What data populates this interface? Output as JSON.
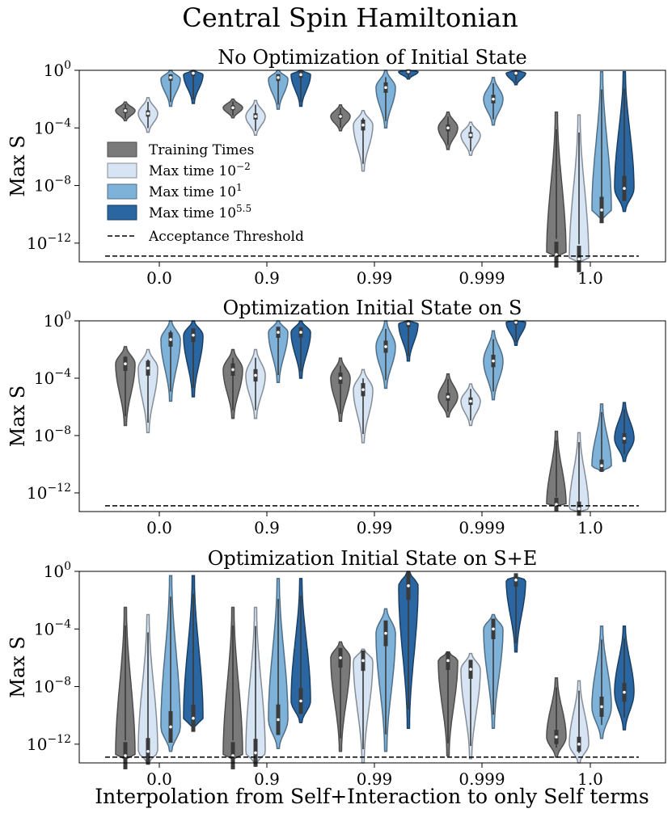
{
  "figure": {
    "suptitle": "Central Spin Hamiltonian",
    "xlabel": "Interpolation from Self+Interaction to only Self terms"
  },
  "colors": {
    "Training Times": "#7a7a7a",
    "Max time 10^-2": "#d6e4f3",
    "Max time 10^1": "#7fb2d9",
    "Max time 10^5.5": "#2a66a1",
    "threshold": "#000000"
  },
  "legend": {
    "entries": [
      {
        "label": "Training Times",
        "base": "Training Times",
        "sup": "",
        "color_key": "Training Times"
      },
      {
        "label": "Max time 10^-2",
        "base": "Max time 10",
        "sup": "−2",
        "color_key": "Max time 10^-2"
      },
      {
        "label": "Max time 10^1",
        "base": "Max time 10",
        "sup": "1",
        "color_key": "Max time 10^1"
      },
      {
        "label": "Max time 10^5.5",
        "base": "Max time 10",
        "sup": "5.5",
        "color_key": "Max time 10^5.5"
      }
    ],
    "threshold_label": "Acceptance Threshold",
    "placement": "left, inside top panel"
  },
  "chart_data": [
    {
      "type": "violin",
      "title": "No Optimization of Initial State",
      "xlabel": "",
      "ylabel": "Max S",
      "yscale": "log10",
      "ylim_log10": [
        -13.3,
        0
      ],
      "yticks_log10": [
        0,
        -4,
        -8,
        -12
      ],
      "ytick_labels": [
        {
          "base": "10",
          "exp": "0"
        },
        {
          "base": "10",
          "exp": "−4"
        },
        {
          "base": "10",
          "exp": "−8"
        },
        {
          "base": "10",
          "exp": "−12"
        }
      ],
      "categories": [
        "0.0",
        "0.9",
        "0.99",
        "0.999",
        "1.0"
      ],
      "acceptance_threshold_log10": -12.9,
      "series_names": [
        "Training Times",
        "Max time 10^-2",
        "Max time 10^1",
        "Max time 10^5.5"
      ],
      "violins": [
        [
          [
            -3.5,
            -2.2,
            -2.8,
            -2.8
          ],
          [
            -4.3,
            -1.9,
            -3.0,
            -3.0
          ],
          [
            -2.5,
            0,
            -0.5,
            -0.6
          ],
          [
            -2.3,
            0,
            -0.2,
            -0.3
          ]
        ],
        [
          [
            -3.3,
            -2.0,
            -2.6,
            -2.6
          ],
          [
            -4.5,
            -2.1,
            -3.2,
            -3.2
          ],
          [
            -2.7,
            0,
            -0.5,
            -0.6
          ],
          [
            -2.5,
            0,
            -0.3,
            -0.3
          ]
        ],
        [
          [
            -4.2,
            -2.4,
            -3.2,
            -3.2
          ],
          [
            -7.0,
            -2.8,
            -3.8,
            -3.8
          ],
          [
            -4.0,
            0,
            -1.2,
            -1.2
          ],
          [
            -0.6,
            0,
            -0.1,
            -0.1
          ]
        ],
        [
          [
            -5.5,
            -2.9,
            -4.0,
            -4.0
          ],
          [
            -5.9,
            -3.6,
            -4.5,
            -4.5
          ],
          [
            -3.8,
            -0.5,
            -2.0,
            -2.0
          ],
          [
            -1.0,
            0,
            -0.2,
            -0.2
          ]
        ],
        [
          [
            -12.9,
            -2.9,
            -12.8,
            -12.8
          ],
          [
            -13.3,
            -3.1,
            -13.1,
            -13.1
          ],
          [
            -10.3,
            -0.1,
            -9.7,
            -9.7
          ],
          [
            -9.8,
            -0.1,
            -8.2,
            -8.2
          ]
        ]
      ]
    },
    {
      "type": "violin",
      "title": "Optimization Initial State on S",
      "xlabel": "",
      "ylabel": "Max S",
      "yscale": "log10",
      "ylim_log10": [
        -13.3,
        0
      ],
      "yticks_log10": [
        0,
        -4,
        -8,
        -12
      ],
      "ytick_labels": [
        {
          "base": "10",
          "exp": "0"
        },
        {
          "base": "10",
          "exp": "−4"
        },
        {
          "base": "10",
          "exp": "−8"
        },
        {
          "base": "10",
          "exp": "−12"
        }
      ],
      "categories": [
        "0.0",
        "0.9",
        "0.99",
        "0.999",
        "1.0"
      ],
      "acceptance_threshold_log10": -12.9,
      "series_names": [
        "Training Times",
        "Max time 10^-2",
        "Max time 10^1",
        "Max time 10^5.5"
      ],
      "violins": [
        [
          [
            -7.3,
            -1.8,
            -3.0,
            -3.0
          ],
          [
            -7.8,
            -2.0,
            -3.3,
            -3.3
          ],
          [
            -5.6,
            0,
            -1.3,
            -1.3
          ],
          [
            -5.3,
            0,
            -1.0,
            -1.0
          ]
        ],
        [
          [
            -6.8,
            -2.0,
            -3.4,
            -3.4
          ],
          [
            -6.8,
            -2.0,
            -3.8,
            -3.8
          ],
          [
            -4.3,
            0,
            -0.8,
            -0.8
          ],
          [
            -4.0,
            0,
            -0.8,
            -0.8
          ]
        ],
        [
          [
            -7.0,
            -2.6,
            -4.0,
            -4.0
          ],
          [
            -8.5,
            -3.4,
            -4.8,
            -4.8
          ],
          [
            -4.7,
            0,
            -1.8,
            -1.8
          ],
          [
            -2.8,
            0,
            -0.2,
            -0.2
          ]
        ],
        [
          [
            -6.7,
            -3.7,
            -5.3,
            -5.3
          ],
          [
            -7.3,
            -4.4,
            -5.6,
            -5.6
          ],
          [
            -5.5,
            -0.7,
            -2.8,
            -2.8
          ],
          [
            -1.7,
            0,
            -0.1,
            -0.1
          ]
        ],
        [
          [
            -12.9,
            -7.7,
            -12.8,
            -12.8
          ],
          [
            -13.3,
            -7.8,
            -13.1,
            -13.1
          ],
          [
            -10.5,
            -5.8,
            -10.1,
            -10.1
          ],
          [
            -9.8,
            -5.7,
            -8.2,
            -8.2
          ]
        ]
      ]
    },
    {
      "type": "violin",
      "title": "Optimization Initial State on S+E",
      "xlabel": "Interpolation from Self+Interaction to only Self terms",
      "ylabel": "Max S",
      "yscale": "log10",
      "ylim_log10": [
        -13.3,
        0
      ],
      "yticks_log10": [
        0,
        -4,
        -8,
        -12
      ],
      "ytick_labels": [
        {
          "base": "10",
          "exp": "0"
        },
        {
          "base": "10",
          "exp": "−4"
        },
        {
          "base": "10",
          "exp": "−8"
        },
        {
          "base": "10",
          "exp": "−12"
        }
      ],
      "categories": [
        "0.0",
        "0.9",
        "0.99",
        "0.999",
        "1.0"
      ],
      "acceptance_threshold_log10": -12.9,
      "series_names": [
        "Training Times",
        "Max time 10^-2",
        "Max time 10^1",
        "Max time 10^5.5"
      ],
      "violins": [
        [
          [
            -13,
            -2.5,
            -12.8,
            -12.8
          ],
          [
            -13.3,
            -3.0,
            -12.5,
            -12.5
          ],
          [
            -12.5,
            -0.3,
            -10.8,
            -10.8
          ],
          [
            -10.8,
            -0.3,
            -10.2,
            -10.2
          ]
        ],
        [
          [
            -13,
            -2.5,
            -12.8,
            -12.8
          ],
          [
            -13.3,
            -2.5,
            -12.6,
            -12.6
          ],
          [
            -12.3,
            -0.5,
            -10.3,
            -10.3
          ],
          [
            -10.5,
            -0.5,
            -9.0,
            -9.0
          ]
        ],
        [
          [
            -12.5,
            -4.9,
            -6.0,
            -6.0
          ],
          [
            -13.3,
            -5.4,
            -6.2,
            -6.2
          ],
          [
            -12.5,
            -2.6,
            -4.3,
            -4.3
          ],
          [
            -10.9,
            0,
            -1.0,
            -1.0
          ]
        ],
        [
          [
            -12.8,
            -5.6,
            -6.2,
            -6.2
          ],
          [
            -13.0,
            -5.7,
            -6.8,
            -6.8
          ],
          [
            -10.9,
            -3.0,
            -4.0,
            -4.0
          ],
          [
            -5.6,
            -0.4,
            -0.6,
            -0.6
          ]
        ],
        [
          [
            -12.9,
            -7.4,
            -11.5,
            -11.5
          ],
          [
            -13.3,
            -7.6,
            -12.0,
            -12.0
          ],
          [
            -11.6,
            -3.8,
            -9.4,
            -9.4
          ],
          [
            -11.0,
            -3.8,
            -8.4,
            -8.4
          ]
        ]
      ]
    }
  ]
}
